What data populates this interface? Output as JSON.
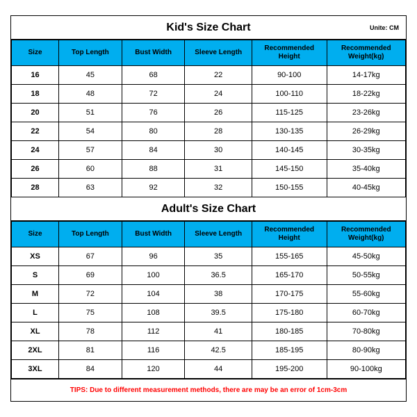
{
  "kid": {
    "title": "Kid's Size Chart",
    "unite": "Unite: CM",
    "columns": [
      "Size",
      "Top Length",
      "Bust Width",
      "Sleeve Length",
      "Recommended Height",
      "Recommended Weight(kg)"
    ],
    "rows": [
      [
        "16",
        "45",
        "68",
        "22",
        "90-100",
        "14-17kg"
      ],
      [
        "18",
        "48",
        "72",
        "24",
        "100-110",
        "18-22kg"
      ],
      [
        "20",
        "51",
        "76",
        "26",
        "115-125",
        "23-26kg"
      ],
      [
        "22",
        "54",
        "80",
        "28",
        "130-135",
        "26-29kg"
      ],
      [
        "24",
        "57",
        "84",
        "30",
        "140-145",
        "30-35kg"
      ],
      [
        "26",
        "60",
        "88",
        "31",
        "145-150",
        "35-40kg"
      ],
      [
        "28",
        "63",
        "92",
        "32",
        "150-155",
        "40-45kg"
      ]
    ]
  },
  "adult": {
    "title": "Adult's Size Chart",
    "columns": [
      "Size",
      "Top Length",
      "Bust Width",
      "Sleeve Length",
      "Recommended Height",
      "Recommended Weight(kg)"
    ],
    "rows": [
      [
        "XS",
        "67",
        "96",
        "35",
        "155-165",
        "45-50kg"
      ],
      [
        "S",
        "69",
        "100",
        "36.5",
        "165-170",
        "50-55kg"
      ],
      [
        "M",
        "72",
        "104",
        "38",
        "170-175",
        "55-60kg"
      ],
      [
        "L",
        "75",
        "108",
        "39.5",
        "175-180",
        "60-70kg"
      ],
      [
        "XL",
        "78",
        "112",
        "41",
        "180-185",
        "70-80kg"
      ],
      [
        "2XL",
        "81",
        "116",
        "42.5",
        "185-195",
        "80-90kg"
      ],
      [
        "3XL",
        "84",
        "120",
        "44",
        "195-200",
        "90-100kg"
      ]
    ]
  },
  "tips": "TIPS: Due to different measurement methods, there are may be an error of 1cm-3cm",
  "colors": {
    "header_bg": "#00aeef",
    "border": "#000000",
    "tips_text": "#ff0000",
    "background": "#ffffff"
  }
}
